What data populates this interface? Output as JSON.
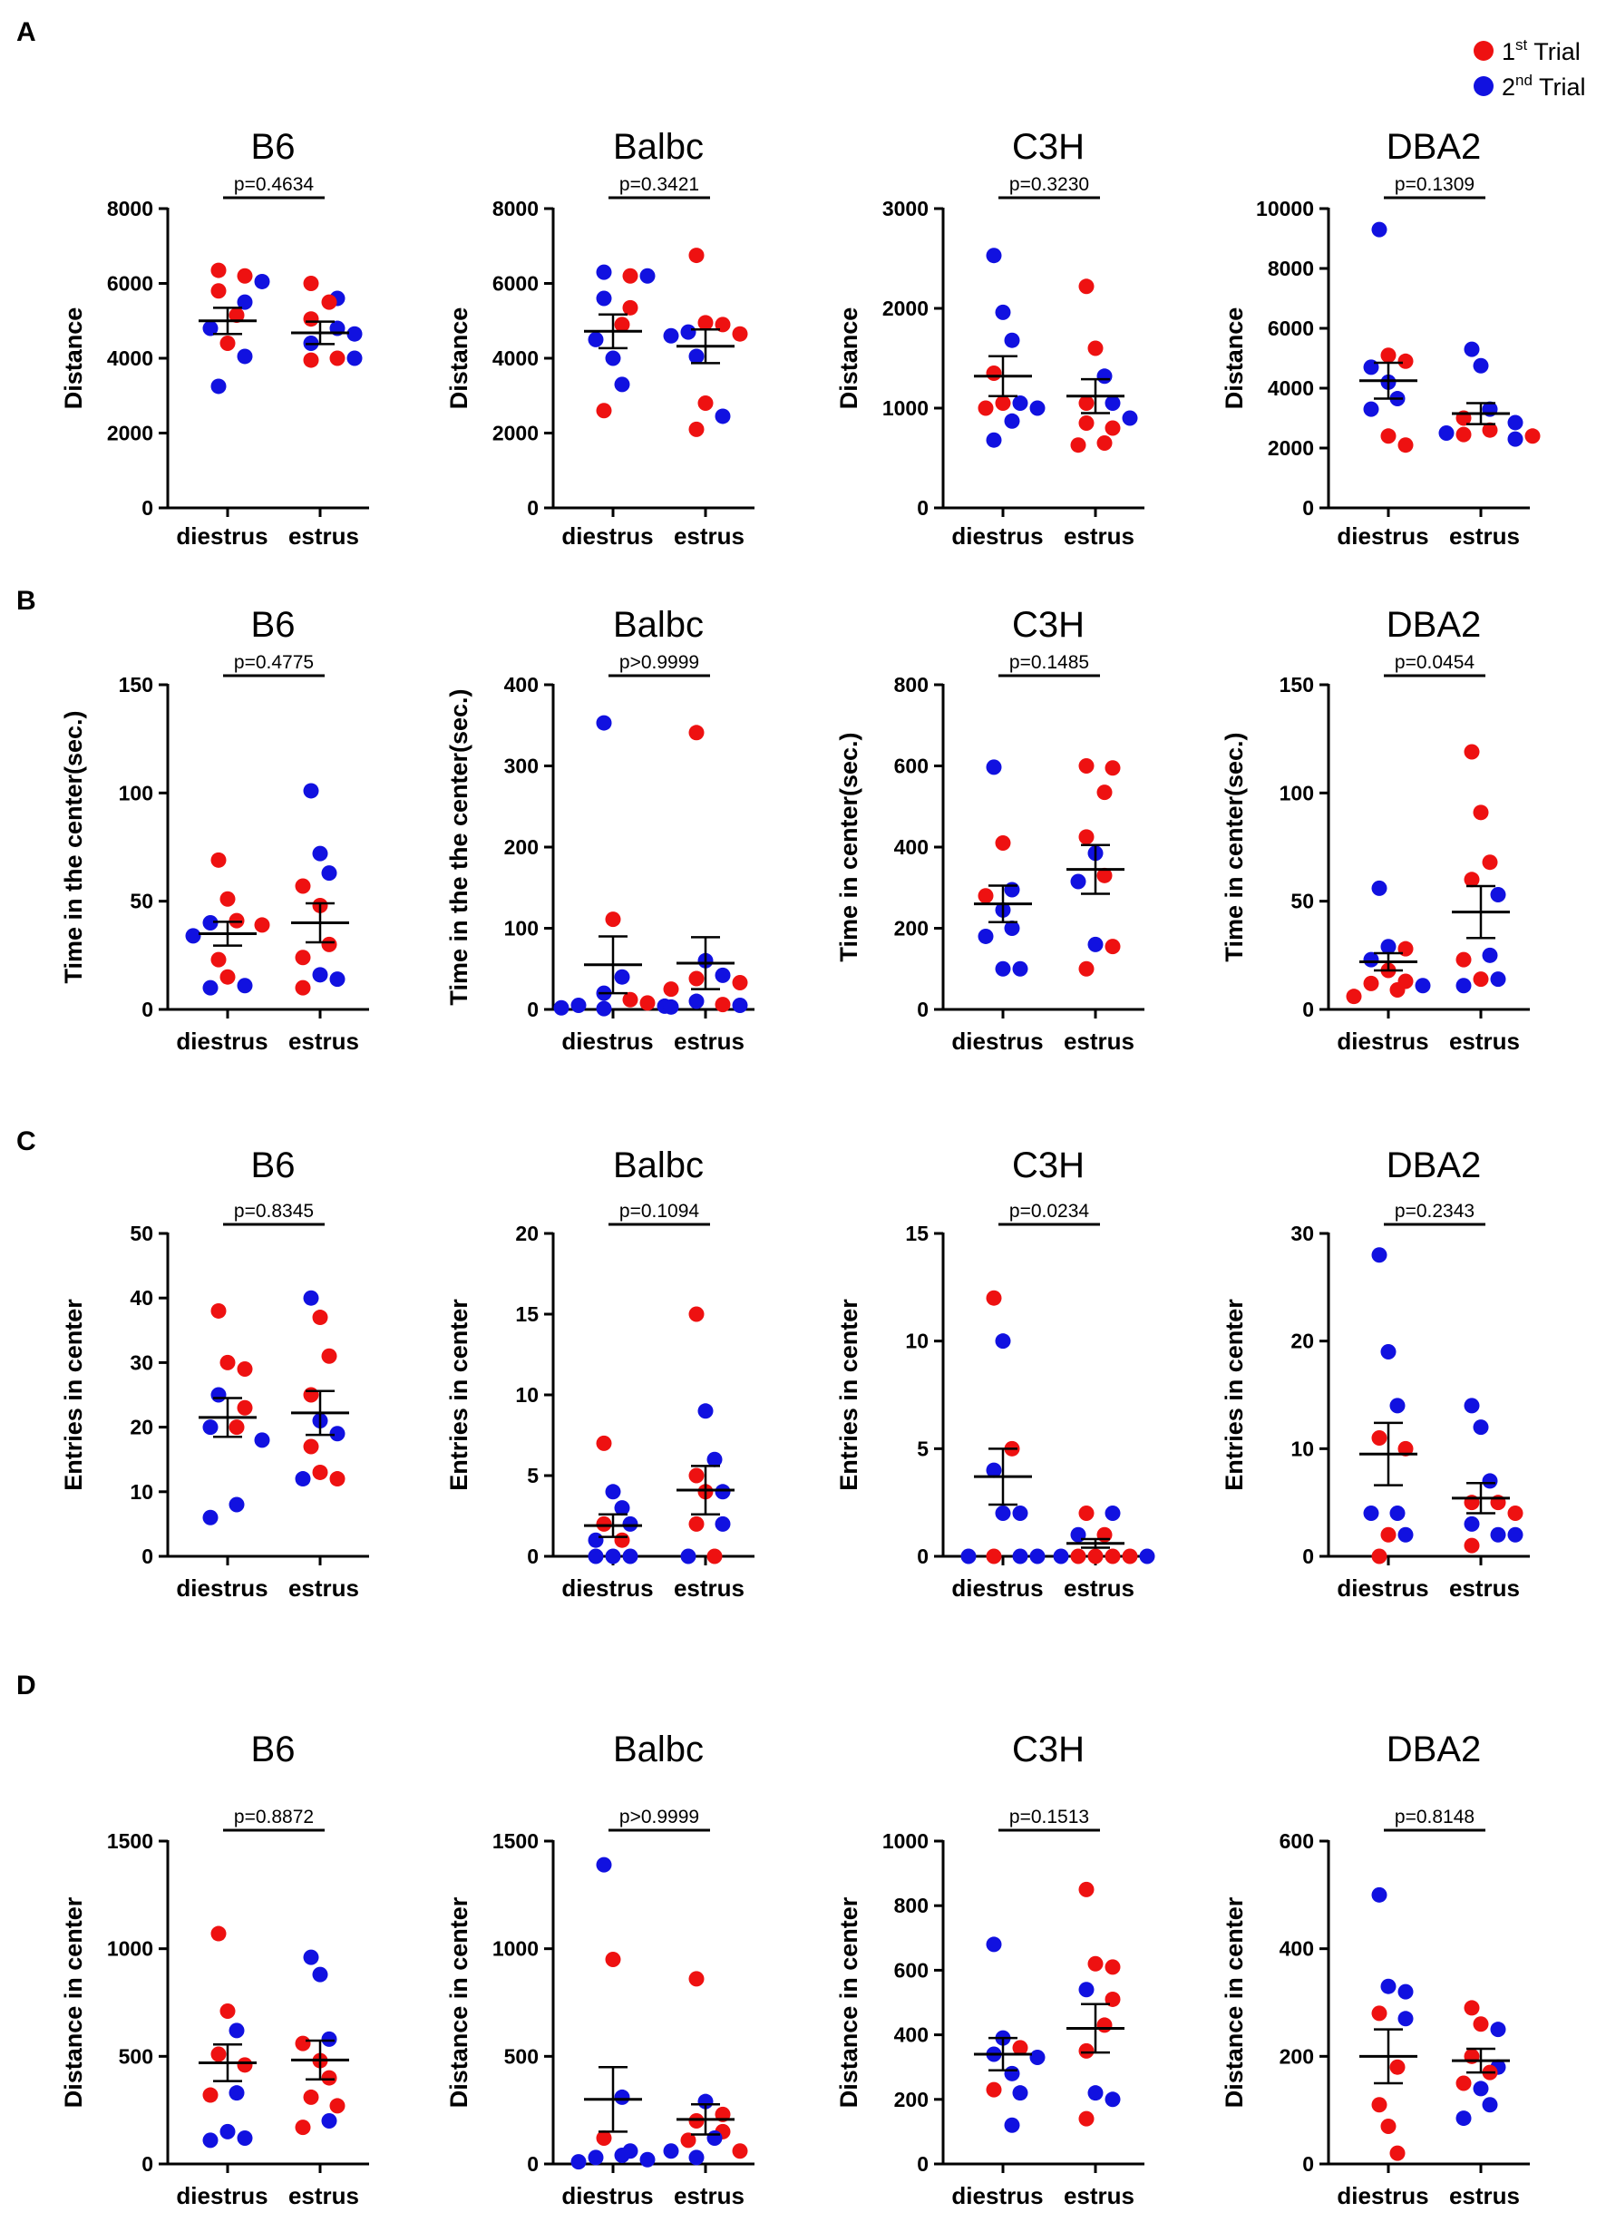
{
  "legend": {
    "items": [
      {
        "label": "1st Trial",
        "base": "1",
        "sup": "st",
        "rest": " Trial",
        "color": "#ee1111"
      },
      {
        "label": "2nd Trial",
        "base": "2",
        "sup": "nd",
        "rest": " Trial",
        "color": "#1111e0"
      }
    ]
  },
  "colors": {
    "trial1": "#ee1111",
    "trial2": "#1111e0",
    "ink": "#000000"
  },
  "chart_data": [
    {
      "panel": "A",
      "title": "B6",
      "type": "scatter",
      "ylabel": "Distance",
      "categories": [
        "diestrus",
        "estrus"
      ],
      "ylim": [
        0,
        8000
      ],
      "yticks": [
        0,
        2000,
        4000,
        6000,
        8000
      ],
      "p_value": "p=0.4634",
      "series": [
        {
          "category": "diestrus",
          "mean": 5000,
          "sem": 350,
          "trial1": [
            6350,
            6200,
            5800,
            5150,
            4400
          ],
          "trial2": [
            6050,
            5500,
            4800,
            4050,
            3250
          ]
        },
        {
          "category": "estrus",
          "mean": 4680,
          "sem": 300,
          "trial1": [
            6000,
            5500,
            5050,
            4000,
            3950
          ],
          "trial2": [
            5600,
            4800,
            4650,
            4400,
            4000
          ]
        }
      ]
    },
    {
      "panel": "A",
      "title": "Balbc",
      "type": "scatter",
      "ylabel": "Distance",
      "categories": [
        "diestrus",
        "estrus"
      ],
      "ylim": [
        0,
        8000
      ],
      "yticks": [
        0,
        2000,
        4000,
        6000,
        8000
      ],
      "p_value": "p=0.3421",
      "series": [
        {
          "category": "diestrus",
          "mean": 4720,
          "sem": 450,
          "trial1": [
            6200,
            5350,
            4900,
            2600
          ],
          "trial2": [
            6300,
            6200,
            5600,
            4500,
            4000,
            3300
          ]
        },
        {
          "category": "estrus",
          "mean": 4320,
          "sem": 450,
          "trial1": [
            6750,
            4950,
            4900,
            4650,
            2800,
            2100
          ],
          "trial2": [
            4700,
            4600,
            4050,
            2450
          ]
        }
      ]
    },
    {
      "panel": "A",
      "title": "C3H",
      "type": "scatter",
      "ylabel": "Distance",
      "categories": [
        "diestrus",
        "estrus"
      ],
      "ylim": [
        0,
        3000
      ],
      "yticks": [
        0,
        1000,
        2000,
        3000
      ],
      "p_value": "p=0.3230",
      "series": [
        {
          "category": "diestrus",
          "mean": 1320,
          "sem": 200,
          "trial1": [
            1350,
            1050,
            1000
          ],
          "trial2": [
            2530,
            1960,
            1680,
            1050,
            1000,
            870,
            680
          ]
        },
        {
          "category": "estrus",
          "mean": 1120,
          "sem": 170,
          "trial1": [
            2220,
            1600,
            1050,
            850,
            800,
            650,
            630
          ],
          "trial2": [
            1320,
            1050,
            900
          ]
        }
      ]
    },
    {
      "panel": "A",
      "title": "DBA2",
      "type": "scatter",
      "ylabel": "Distance",
      "categories": [
        "diestrus",
        "estrus"
      ],
      "ylim": [
        0,
        10000
      ],
      "yticks": [
        0,
        2000,
        4000,
        6000,
        8000,
        10000
      ],
      "p_value": "p=0.1309",
      "series": [
        {
          "category": "diestrus",
          "mean": 4250,
          "sem": 600,
          "trial1": [
            5100,
            4900,
            2400,
            2100
          ],
          "trial2": [
            9300,
            4700,
            4200,
            3650,
            3300
          ]
        },
        {
          "category": "estrus",
          "mean": 3150,
          "sem": 350,
          "trial1": [
            3000,
            2600,
            2450,
            2400
          ],
          "trial2": [
            5300,
            4750,
            3300,
            2850,
            2500,
            2300
          ]
        }
      ]
    },
    {
      "panel": "B",
      "title": "B6",
      "type": "scatter",
      "ylabel": "Time in the center(sec.)",
      "categories": [
        "diestrus",
        "estrus"
      ],
      "ylim": [
        0,
        150
      ],
      "yticks": [
        0,
        50,
        100,
        150
      ],
      "p_value": "p=0.4775",
      "series": [
        {
          "category": "diestrus",
          "mean": 35,
          "sem": 5.5,
          "trial1": [
            69,
            51,
            41,
            39,
            23,
            15
          ],
          "trial2": [
            40,
            34,
            11,
            10
          ]
        },
        {
          "category": "estrus",
          "mean": 40,
          "sem": 9,
          "trial1": [
            57,
            48,
            30,
            24,
            10
          ],
          "trial2": [
            101,
            72,
            63,
            16,
            14
          ]
        }
      ]
    },
    {
      "panel": "B",
      "title": "Balbc",
      "type": "scatter",
      "ylabel": "Time in the the center(sec.)",
      "categories": [
        "diestrus",
        "estrus"
      ],
      "ylim": [
        0,
        400
      ],
      "yticks": [
        0,
        100,
        200,
        300,
        400
      ],
      "p_value": "p>0.9999",
      "series": [
        {
          "category": "diestrus",
          "mean": 55,
          "sem": 35,
          "trial1": [
            111,
            12,
            8
          ],
          "trial2": [
            353,
            40,
            20,
            5,
            4,
            2,
            1
          ]
        },
        {
          "category": "estrus",
          "mean": 57,
          "sem": 32,
          "trial1": [
            341,
            38,
            33,
            25,
            6
          ],
          "trial2": [
            60,
            42,
            10,
            5,
            3
          ]
        }
      ]
    },
    {
      "panel": "B",
      "title": "C3H",
      "type": "scatter",
      "ylabel": "Time in center(sec.)",
      "categories": [
        "diestrus",
        "estrus"
      ],
      "ylim": [
        0,
        800
      ],
      "yticks": [
        0,
        200,
        400,
        600,
        800
      ],
      "p_value": "p=0.1485",
      "series": [
        {
          "category": "diestrus",
          "mean": 260,
          "sem": 45,
          "trial1": [
            410,
            280
          ],
          "trial2": [
            597,
            295,
            245,
            200,
            180,
            100,
            100
          ]
        },
        {
          "category": "estrus",
          "mean": 345,
          "sem": 60,
          "trial1": [
            600,
            595,
            535,
            425,
            330,
            155,
            100
          ],
          "trial2": [
            385,
            315,
            160
          ]
        }
      ]
    },
    {
      "panel": "B",
      "title": "DBA2",
      "type": "scatter",
      "ylabel": "Time in center(sec.)",
      "categories": [
        "diestrus",
        "estrus"
      ],
      "ylim": [
        0,
        150
      ],
      "yticks": [
        0,
        50,
        100,
        150
      ],
      "p_value": "p=0.0454",
      "series": [
        {
          "category": "diestrus",
          "mean": 22,
          "sem": 4,
          "trial1": [
            28,
            18,
            13,
            12,
            9,
            6
          ],
          "trial2": [
            56,
            29,
            23,
            11
          ]
        },
        {
          "category": "estrus",
          "mean": 45,
          "sem": 12,
          "trial1": [
            119,
            91,
            68,
            60,
            23,
            14
          ],
          "trial2": [
            53,
            25,
            14,
            11
          ]
        }
      ]
    },
    {
      "panel": "C",
      "title": "B6",
      "type": "scatter",
      "ylabel": "Entries in center",
      "categories": [
        "diestrus",
        "estrus"
      ],
      "ylim": [
        0,
        50
      ],
      "yticks": [
        0,
        10,
        20,
        30,
        40,
        50
      ],
      "p_value": "p=0.8345",
      "series": [
        {
          "category": "diestrus",
          "mean": 21.5,
          "sem": 3,
          "trial1": [
            38,
            30,
            29,
            23,
            20
          ],
          "trial2": [
            25,
            20,
            18,
            8,
            6
          ]
        },
        {
          "category": "estrus",
          "mean": 22.2,
          "sem": 3.4,
          "trial1": [
            37,
            31,
            25,
            17,
            13,
            12
          ],
          "trial2": [
            40,
            21,
            19,
            12
          ]
        }
      ]
    },
    {
      "panel": "C",
      "title": "Balbc",
      "type": "scatter",
      "ylabel": "Entries in center",
      "categories": [
        "diestrus",
        "estrus"
      ],
      "ylim": [
        0,
        20
      ],
      "yticks": [
        0,
        5,
        10,
        15,
        20
      ],
      "p_value": "p=0.1094",
      "series": [
        {
          "category": "diestrus",
          "mean": 1.9,
          "sem": 0.7,
          "trial1": [
            7,
            2,
            1
          ],
          "trial2": [
            4,
            3,
            2,
            1,
            0,
            0,
            0
          ]
        },
        {
          "category": "estrus",
          "mean": 4.1,
          "sem": 1.5,
          "trial1": [
            15,
            5,
            4,
            2,
            0
          ],
          "trial2": [
            9,
            6,
            4,
            2,
            0
          ]
        }
      ]
    },
    {
      "panel": "C",
      "title": "C3H",
      "type": "scatter",
      "ylabel": "Entries in center",
      "categories": [
        "diestrus",
        "estrus"
      ],
      "ylim": [
        0,
        15
      ],
      "yticks": [
        0,
        5,
        10,
        15
      ],
      "p_value": "p=0.0234",
      "series": [
        {
          "category": "diestrus",
          "mean": 3.7,
          "sem": 1.3,
          "trial1": [
            12,
            5,
            0
          ],
          "trial2": [
            10,
            4,
            2,
            2,
            0,
            0,
            0
          ]
        },
        {
          "category": "estrus",
          "mean": 0.6,
          "sem": 0.2,
          "trial1": [
            2,
            1,
            0,
            0,
            0,
            0
          ],
          "trial2": [
            2,
            1,
            0,
            0
          ]
        }
      ]
    },
    {
      "panel": "C",
      "title": "DBA2",
      "type": "scatter",
      "ylabel": "Entries in center",
      "categories": [
        "diestrus",
        "estrus"
      ],
      "ylim": [
        0,
        30
      ],
      "yticks": [
        0,
        10,
        20,
        30
      ],
      "p_value": "p=0.2343",
      "series": [
        {
          "category": "diestrus",
          "mean": 9.5,
          "sem": 2.9,
          "trial1": [
            11,
            10,
            2,
            0
          ],
          "trial2": [
            28,
            19,
            14,
            4,
            4,
            2
          ]
        },
        {
          "category": "estrus",
          "mean": 5.4,
          "sem": 1.4,
          "trial1": [
            5,
            5,
            4,
            1
          ],
          "trial2": [
            14,
            12,
            7,
            3,
            2,
            2
          ]
        }
      ]
    },
    {
      "panel": "D",
      "title": "B6",
      "type": "scatter",
      "ylabel": "Distance in center",
      "categories": [
        "diestrus",
        "estrus"
      ],
      "ylim": [
        0,
        1500
      ],
      "yticks": [
        0,
        500,
        1000,
        1500
      ],
      "p_value": "p=0.8872",
      "series": [
        {
          "category": "diestrus",
          "mean": 470,
          "sem": 85,
          "trial1": [
            1070,
            710,
            510,
            460,
            320
          ],
          "trial2": [
            620,
            330,
            150,
            120,
            110
          ]
        },
        {
          "category": "estrus",
          "mean": 483,
          "sem": 90,
          "trial1": [
            560,
            480,
            400,
            310,
            270,
            170
          ],
          "trial2": [
            960,
            880,
            580,
            200
          ]
        }
      ]
    },
    {
      "panel": "D",
      "title": "Balbc",
      "type": "scatter",
      "ylabel": "Distance in center",
      "categories": [
        "diestrus",
        "estrus"
      ],
      "ylim": [
        0,
        1500
      ],
      "yticks": [
        0,
        500,
        1000,
        1500
      ],
      "p_value": "p>0.9999",
      "series": [
        {
          "category": "diestrus",
          "mean": 300,
          "sem": 150,
          "trial1": [
            950,
            120
          ],
          "trial2": [
            1390,
            310,
            60,
            40,
            30,
            20,
            10
          ]
        },
        {
          "category": "estrus",
          "mean": 207,
          "sem": 70,
          "trial1": [
            860,
            230,
            200,
            150,
            110,
            60
          ],
          "trial2": [
            290,
            120,
            60,
            30
          ]
        }
      ]
    },
    {
      "panel": "D",
      "title": "C3H",
      "type": "scatter",
      "ylabel": "Distance in center",
      "categories": [
        "diestrus",
        "estrus"
      ],
      "ylim": [
        0,
        1000
      ],
      "yticks": [
        0,
        200,
        400,
        600,
        800,
        1000
      ],
      "p_value": "p=0.1513",
      "series": [
        {
          "category": "diestrus",
          "mean": 340,
          "sem": 50,
          "trial1": [
            360,
            230
          ],
          "trial2": [
            680,
            390,
            340,
            330,
            280,
            220,
            120
          ]
        },
        {
          "category": "estrus",
          "mean": 420,
          "sem": 75,
          "trial1": [
            850,
            620,
            610,
            510,
            430,
            350,
            140
          ],
          "trial2": [
            540,
            220,
            200
          ]
        }
      ]
    },
    {
      "panel": "D",
      "title": "DBA2",
      "type": "scatter",
      "ylabel": "Distance in center",
      "categories": [
        "diestrus",
        "estrus"
      ],
      "ylim": [
        0,
        600
      ],
      "yticks": [
        0,
        200,
        400,
        600
      ],
      "p_value": "p=0.8148",
      "series": [
        {
          "category": "diestrus",
          "mean": 200,
          "sem": 50,
          "trial1": [
            280,
            180,
            110,
            70,
            20
          ],
          "trial2": [
            500,
            330,
            320,
            270
          ]
        },
        {
          "category": "estrus",
          "mean": 192,
          "sem": 22,
          "trial1": [
            290,
            260,
            200,
            170,
            150
          ],
          "trial2": [
            250,
            180,
            140,
            110,
            85
          ]
        }
      ]
    }
  ]
}
